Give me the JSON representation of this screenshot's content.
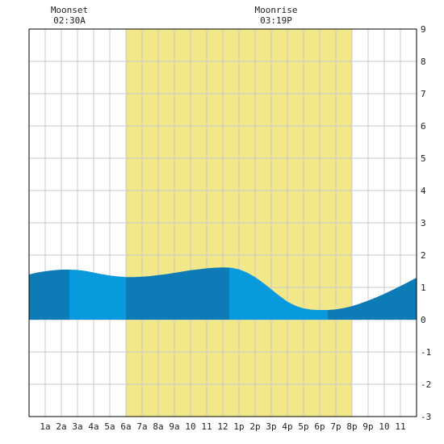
{
  "chart_data": {
    "type": "area",
    "title": "",
    "xlabel": "",
    "ylabel": "",
    "xlim": [
      0,
      24
    ],
    "ylim": [
      -3,
      9
    ],
    "grid": true,
    "x_ticks": [
      {
        "x": 1,
        "label": "1a"
      },
      {
        "x": 2,
        "label": "2a"
      },
      {
        "x": 3,
        "label": "3a"
      },
      {
        "x": 4,
        "label": "4a"
      },
      {
        "x": 5,
        "label": "5a"
      },
      {
        "x": 6,
        "label": "6a"
      },
      {
        "x": 7,
        "label": "7a"
      },
      {
        "x": 8,
        "label": "8a"
      },
      {
        "x": 9,
        "label": "9a"
      },
      {
        "x": 10,
        "label": "10"
      },
      {
        "x": 11,
        "label": "11"
      },
      {
        "x": 12,
        "label": "12"
      },
      {
        "x": 13,
        "label": "1p"
      },
      {
        "x": 14,
        "label": "2p"
      },
      {
        "x": 15,
        "label": "3p"
      },
      {
        "x": 16,
        "label": "4p"
      },
      {
        "x": 17,
        "label": "5p"
      },
      {
        "x": 18,
        "label": "6p"
      },
      {
        "x": 19,
        "label": "7p"
      },
      {
        "x": 20,
        "label": "8p"
      },
      {
        "x": 21,
        "label": "9p"
      },
      {
        "x": 22,
        "label": "10"
      },
      {
        "x": 23,
        "label": "11"
      }
    ],
    "y_ticks": [
      -3,
      -2,
      -1,
      0,
      1,
      2,
      3,
      4,
      5,
      6,
      7,
      8,
      9
    ],
    "daylight": {
      "start": 6.0,
      "end": 20.0
    },
    "moon_events": [
      {
        "title": "Moonset",
        "time": "02:30A",
        "x": 2.5
      },
      {
        "title": "Moonrise",
        "time": "03:19P",
        "x": 15.3
      }
    ],
    "tide_events": [
      {
        "type": "high",
        "x": 2.5,
        "y": 1.55
      },
      {
        "type": "low",
        "x": 6.0,
        "y": 1.32
      },
      {
        "type": "high",
        "x": 12.4,
        "y": 1.62
      },
      {
        "type": "low",
        "x": 18.5,
        "y": 0.3
      }
    ],
    "series": [
      {
        "x": [
          0,
          0.5,
          1,
          1.5,
          2,
          2.5,
          3,
          3.5,
          4,
          4.5,
          5,
          5.5,
          6,
          6.5,
          7,
          7.5,
          8,
          8.5,
          9,
          9.5,
          10,
          10.5,
          11,
          11.5,
          12,
          12.5,
          13,
          13.5,
          14,
          14.5,
          15,
          15.5,
          16,
          16.5,
          17,
          17.5,
          18,
          18.5,
          19,
          19.5,
          20,
          20.5,
          21,
          21.5,
          22,
          22.5,
          23,
          23.5,
          24
        ],
        "values": [
          1.4,
          1.46,
          1.5,
          1.53,
          1.55,
          1.55,
          1.54,
          1.51,
          1.46,
          1.41,
          1.37,
          1.34,
          1.32,
          1.32,
          1.33,
          1.35,
          1.38,
          1.41,
          1.45,
          1.49,
          1.53,
          1.56,
          1.59,
          1.61,
          1.62,
          1.61,
          1.56,
          1.46,
          1.32,
          1.14,
          0.94,
          0.74,
          0.56,
          0.43,
          0.35,
          0.31,
          0.3,
          0.3,
          0.32,
          0.36,
          0.42,
          0.5,
          0.59,
          0.69,
          0.8,
          0.92,
          1.04,
          1.17,
          1.3
        ]
      }
    ],
    "colors": {
      "daylight": "#f2e88a",
      "tide_dark": "#0d7bb5",
      "tide_light": "#0999dd",
      "grid": "#c8c8c8",
      "axis": "#000000"
    }
  }
}
